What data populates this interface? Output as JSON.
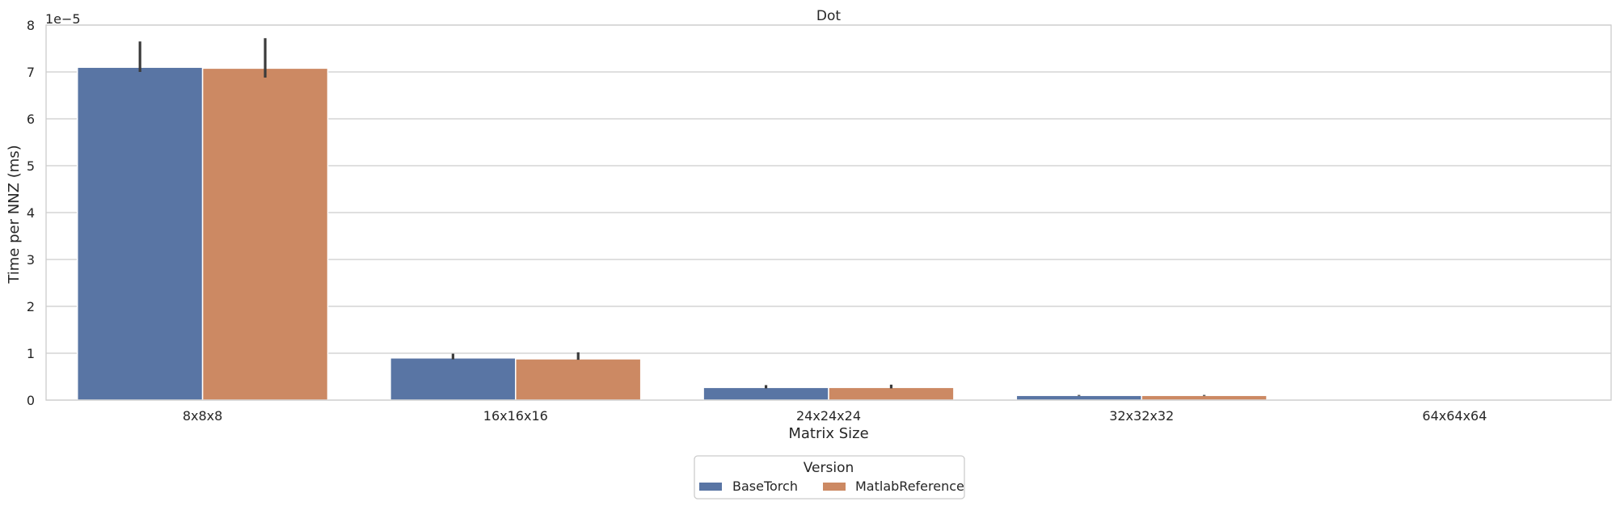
{
  "chart_data": {
    "type": "bar",
    "title": "Dot",
    "xlabel": "Matrix Size",
    "ylabel": "Time per NNZ (ms)",
    "y_offset_label": "1e−5",
    "y_scale_exponent": -5,
    "ylim": [
      0,
      8
    ],
    "yticks": [
      "0",
      "1",
      "2",
      "3",
      "4",
      "5",
      "6",
      "7",
      "8"
    ],
    "grid": "horizontal",
    "categories": [
      "8x8x8",
      "16x16x16",
      "24x24x24",
      "32x32x32",
      "64x64x64"
    ],
    "series": [
      {
        "name": "BaseTorch",
        "color": "#5975a4",
        "values": [
          7.1,
          0.9,
          0.27,
          0.1,
          0.0
        ],
        "err_low": [
          7.0,
          0.87,
          0.25,
          0.09,
          0.0
        ],
        "err_high": [
          7.65,
          0.99,
          0.32,
          0.11,
          0.0
        ]
      },
      {
        "name": "MatlabReference",
        "color": "#cc8963",
        "values": [
          7.08,
          0.88,
          0.27,
          0.1,
          0.0
        ],
        "err_low": [
          6.88,
          0.86,
          0.25,
          0.09,
          0.0
        ],
        "err_high": [
          7.72,
          1.02,
          0.33,
          0.11,
          0.0
        ]
      }
    ],
    "legend": {
      "title": "Version",
      "placement": "bottom-center",
      "entries": [
        "BaseTorch",
        "MatlabReference"
      ]
    }
  }
}
